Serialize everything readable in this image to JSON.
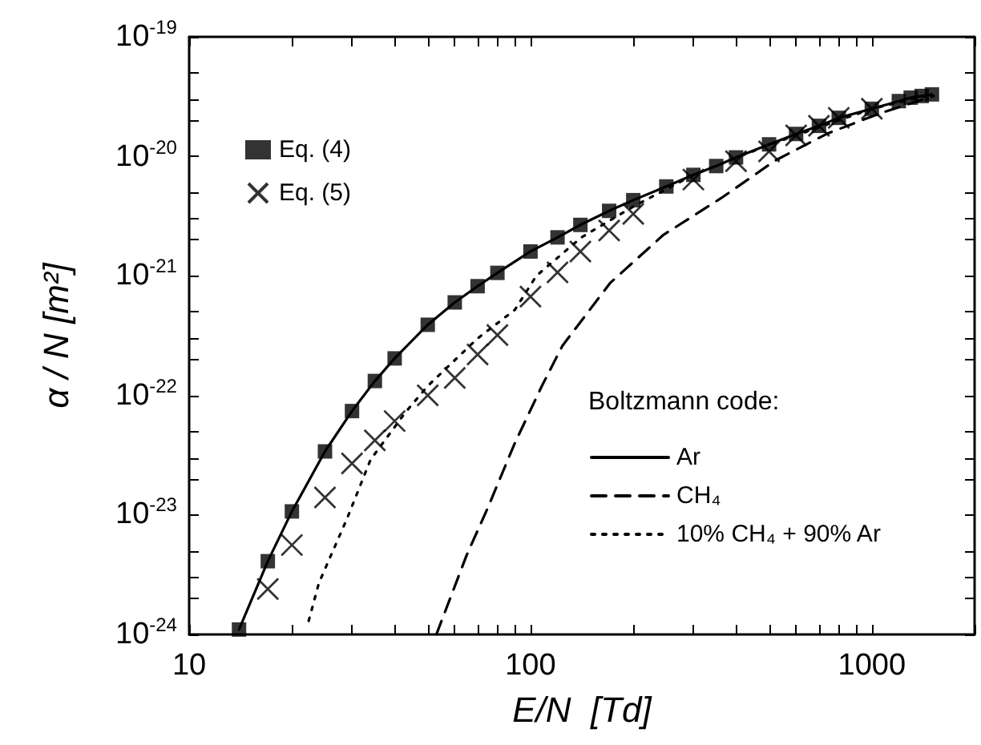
{
  "chart_data": {
    "type": "line",
    "xlabel": "E/N  [Td]",
    "ylabel": "α / N [m²]",
    "legend_title": "Boltzmann code:",
    "log": "xy",
    "legend": "left",
    "xlim": [
      10,
      2000
    ],
    "ylim": [
      1e-24,
      1e-19
    ],
    "xticks": [
      10,
      {
        "value": 20,
        "label": null
      },
      {
        "value": 30,
        "label": null
      },
      {
        "value": 40,
        "label": null
      },
      {
        "value": 50,
        "label": null
      },
      {
        "value": 60,
        "label": null
      },
      {
        "value": 70,
        "label": null
      },
      {
        "value": 80,
        "label": null
      },
      {
        "value": 90,
        "label": null
      },
      100,
      {
        "value": 200,
        "label": null
      },
      {
        "value": 300,
        "label": null
      },
      {
        "value": 400,
        "label": null
      },
      {
        "value": 500,
        "label": null
      },
      {
        "value": 600,
        "label": null
      },
      {
        "value": 700,
        "label": null
      },
      {
        "value": 800,
        "label": null
      },
      {
        "value": 900,
        "label": null
      },
      1000,
      {
        "value": 2000,
        "label": null
      }
    ],
    "yticks": [
      {
        "value": 1e-24,
        "label": "10$^{-24}$"
      },
      {
        "value": 2e-24,
        "label": null
      },
      {
        "value": 3e-24,
        "label": null
      },
      {
        "value": 5e-24,
        "label": null
      },
      {
        "value": 1e-23,
        "label": "10$^{-23}$"
      },
      {
        "value": 2e-23,
        "label": null
      },
      {
        "value": 3e-23,
        "label": null
      },
      {
        "value": 5e-23,
        "label": null
      },
      {
        "value": 1e-22,
        "label": "10$^{-22}$"
      },
      {
        "value": 2e-22,
        "label": null
      },
      {
        "value": 3e-22,
        "label": null
      },
      {
        "value": 5e-22,
        "label": null
      },
      {
        "value": 1e-21,
        "label": "10$^{-21}$"
      },
      {
        "value": 2e-21,
        "label": null
      },
      {
        "value": 3e-21,
        "label": null
      },
      {
        "value": 5e-21,
        "label": null
      },
      {
        "value": 1e-20,
        "label": "10$^{-20}$"
      },
      {
        "value": 2e-20,
        "label": null
      },
      {
        "value": 3e-20,
        "label": null
      },
      {
        "value": 5e-20,
        "label": null
      },
      {
        "value": 1e-19,
        "label": "10$^{-19}$"
      }
    ],
    "series": [
      {
        "name": "Ar",
        "color": "#000000",
        "line_style": "solid",
        "marker": "none",
        "x": [
          14,
          17,
          20,
          25,
          30,
          35,
          40,
          50,
          60,
          70,
          80,
          100,
          120,
          140,
          170,
          200,
          250,
          300,
          350,
          400,
          500,
          600,
          700,
          800,
          1000,
          1200,
          1300,
          1400,
          1500
        ],
        "values": [
          1.1e-24,
          4.1e-24,
          1.07e-23,
          3.4e-23,
          7.4e-23,
          1.32e-22,
          2.04e-22,
          3.9e-22,
          6e-22,
          8.2e-22,
          1.06e-21,
          1.6e-21,
          2.1e-21,
          2.67e-21,
          3.5e-21,
          4.3e-21,
          5.6e-21,
          7e-21,
          8.3e-21,
          9.8e-21,
          1.26e-20,
          1.54e-20,
          1.8e-20,
          2.1e-20,
          2.5e-20,
          2.9e-20,
          3.1e-20,
          3.2e-20,
          3.3e-20
        ]
      },
      {
        "name": "CH₄",
        "color": "#000000",
        "line_style": "dashed",
        "marker": "none",
        "x": [
          53,
          65,
          75,
          90,
          108,
          124,
          171,
          245,
          363,
          520,
          740,
          1060,
          1520
        ],
        "values": [
          1e-24,
          4.6e-24,
          1.15e-23,
          4e-23,
          1.2e-22,
          2.6e-22,
          8.7e-22,
          2.2e-21,
          4.5e-21,
          9.2e-21,
          1.55e-20,
          2.3e-20,
          3.2e-20
        ]
      },
      {
        "name": "10% CH₄ + 90% Ar",
        "color": "#000000",
        "line_style": "dotted",
        "marker": "none",
        "x": [
          22.4,
          24,
          29,
          34,
          43,
          50,
          70,
          90,
          104,
          141,
          200,
          300,
          500,
          1000,
          1500
        ],
        "values": [
          1.3e-24,
          2.7e-24,
          9.3e-24,
          2.9e-23,
          7.2e-23,
          1.2e-22,
          3e-22,
          5.2e-22,
          1e-21,
          2.1e-21,
          3.8e-21,
          7e-21,
          1.25e-20,
          2.5e-20,
          3.3e-20
        ]
      },
      {
        "name": "Eq. (4)",
        "type": "scatter",
        "color": "#000000",
        "marker": "square",
        "x": [
          14,
          17,
          20,
          25,
          30,
          35,
          40,
          50,
          60,
          70,
          80,
          100,
          120,
          140,
          170,
          200,
          250,
          300,
          350,
          400,
          500,
          600,
          700,
          800,
          1000,
          1200,
          1300,
          1400,
          1500
        ],
        "values": [
          1.1e-24,
          4.1e-24,
          1.07e-23,
          3.4e-23,
          7.4e-23,
          1.32e-22,
          2.04e-22,
          3.9e-22,
          6e-22,
          8.2e-22,
          1.06e-21,
          1.6e-21,
          2.1e-21,
          2.67e-21,
          3.5e-21,
          4.3e-21,
          5.6e-21,
          7e-21,
          8.3e-21,
          9.8e-21,
          1.26e-20,
          1.54e-20,
          1.8e-20,
          2.1e-20,
          2.5e-20,
          2.9e-20,
          3.1e-20,
          3.2e-20,
          3.3e-20
        ]
      },
      {
        "name": "Eq. (5)",
        "type": "scatter",
        "color": "#000000",
        "marker": "cross",
        "x": [
          17,
          20,
          25,
          30,
          35,
          40,
          50,
          60,
          70,
          80,
          100,
          120,
          140,
          170,
          200,
          300,
          400,
          500,
          600,
          700,
          800,
          1000
        ],
        "values": [
          2.4e-24,
          5.6e-24,
          1.4e-23,
          2.7e-23,
          4.2e-23,
          6.1e-23,
          1e-22,
          1.4e-22,
          2.2e-22,
          3.2e-22,
          6.7e-22,
          1.07e-21,
          1.6e-21,
          2.4e-21,
          3.3e-21,
          6.4e-21,
          9.1e-21,
          1.1e-20,
          1.5e-20,
          1.8e-20,
          2.1e-20,
          2.5e-20
        ]
      }
    ]
  }
}
